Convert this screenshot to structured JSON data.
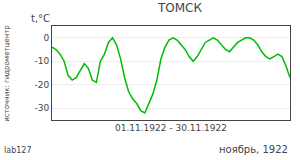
{
  "chart_data": {
    "type": "line",
    "title": "ТОМСК",
    "ylabel": "t,°C",
    "xlabel": "01.11.1922 - 30.11.1922",
    "annotations": [
      "ноябрь, 1922",
      "источник: гидрометцентр",
      "lab127"
    ],
    "categories": [
      null,
      null,
      null,
      null,
      null,
      null,
      null,
      null,
      null,
      null,
      null,
      null,
      null,
      null,
      null,
      null,
      null,
      null,
      null,
      null,
      null,
      null,
      null,
      null,
      null,
      null,
      null,
      null,
      null,
      null,
      null,
      null,
      null,
      null,
      null,
      null,
      null,
      null,
      null,
      null,
      null,
      null,
      null,
      null,
      null,
      null,
      null,
      null,
      null,
      null,
      null,
      null,
      null,
      null,
      null,
      null,
      null,
      null,
      null,
      null
    ],
    "values": [
      -4,
      -5,
      -7,
      -10,
      -16,
      -18,
      -17,
      -14,
      -11,
      -13,
      -18,
      -19,
      -10,
      -7,
      -2,
      0,
      -3,
      -9,
      -17,
      -23,
      -26,
      -28,
      -31,
      -32,
      -28,
      -24,
      -18,
      -9,
      -4,
      -1,
      0,
      -1,
      -3,
      -5,
      -8,
      -10,
      -8,
      -5,
      -2,
      -1,
      0,
      -1,
      -3,
      -5,
      -6,
      -4,
      -2,
      -1,
      0,
      0,
      -1,
      -3,
      -6,
      -8,
      -9,
      -8,
      -7,
      -8,
      -12,
      -17
    ],
    "color": "#00bb00",
    "ylim": [
      -35,
      5
    ],
    "yticks": [
      0,
      -10,
      -20,
      -30
    ],
    "grid": true,
    "tick_labels": "y"
  }
}
